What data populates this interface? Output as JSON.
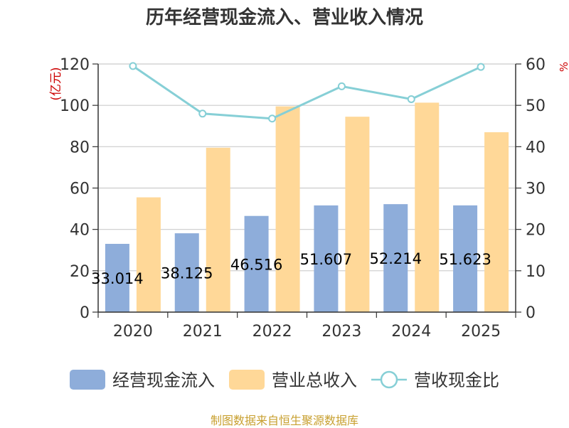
{
  "title": "历年经营现金流入、营业收入情况",
  "footer": "制图数据来自恒生聚源数据库",
  "colors": {
    "cash_inflow": "#8EADDA",
    "revenue": "#FFD898",
    "ratio": "#86CFD6",
    "ylabel": "#CC0000",
    "footer": "#C8A030",
    "grid": "#CCCCCC",
    "axis": "#333333"
  },
  "chart_data": {
    "type": "bar",
    "title": "历年经营现金流入、营业收入情况",
    "categories": [
      "2020",
      "2021",
      "2022",
      "2023",
      "2024",
      "2025"
    ],
    "series": [
      {
        "name": "经营现金流入",
        "type": "bar",
        "axis": "left",
        "values": [
          33.014,
          38.125,
          46.516,
          51.607,
          52.214,
          51.623
        ],
        "labels": [
          "33.014",
          "38.125",
          "46.516",
          "51.607",
          "52.214",
          "51.623"
        ]
      },
      {
        "name": "营业总收入",
        "type": "bar",
        "axis": "left",
        "values": [
          55.5,
          79.5,
          99.5,
          94.5,
          101.3,
          87.0
        ]
      },
      {
        "name": "营收现金比",
        "type": "line",
        "axis": "right",
        "values": [
          59.5,
          48.0,
          46.8,
          54.6,
          51.5,
          59.3
        ]
      }
    ],
    "ylabel": "(亿元)",
    "ylabel_right": "%",
    "ylim": [
      0,
      120
    ],
    "yticks": [
      "0",
      "20",
      "40",
      "60",
      "80",
      "100",
      "120"
    ],
    "ylim_right": [
      0,
      60
    ],
    "yticks_right": [
      "0",
      "10",
      "20",
      "30",
      "40",
      "50",
      "60"
    ],
    "grid": true,
    "legend_position": "bottom"
  }
}
